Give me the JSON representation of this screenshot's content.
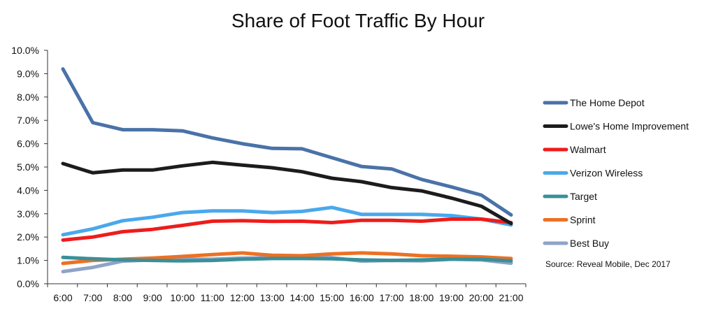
{
  "chart_data": {
    "type": "line",
    "title": "Share of Foot Traffic By Hour",
    "xlabel": "",
    "ylabel": "",
    "categories": [
      "6:00",
      "7:00",
      "8:00",
      "9:00",
      "10:00",
      "11:00",
      "12:00",
      "13:00",
      "14:00",
      "15:00",
      "16:00",
      "17:00",
      "18:00",
      "19:00",
      "20:00",
      "21:00"
    ],
    "y_ticks": [
      "0.0%",
      "1.0%",
      "2.0%",
      "3.0%",
      "4.0%",
      "5.0%",
      "6.0%",
      "7.0%",
      "8.0%",
      "9.0%",
      "10.0%"
    ],
    "ylim": [
      0,
      10
    ],
    "grid": false,
    "legend_position": "right",
    "series": [
      {
        "name": "The Home Depot",
        "color": "#4a72a8",
        "values": [
          9.2,
          6.9,
          6.6,
          6.6,
          6.55,
          6.25,
          6.0,
          5.8,
          5.78,
          5.4,
          5.02,
          4.92,
          4.47,
          4.15,
          3.8,
          2.95
        ]
      },
      {
        "name": "Lowe's Home Improvement",
        "color": "#1c1c1c",
        "values": [
          5.15,
          4.75,
          4.87,
          4.87,
          5.05,
          5.2,
          5.08,
          4.97,
          4.8,
          4.52,
          4.37,
          4.12,
          3.98,
          3.67,
          3.32,
          2.58
        ]
      },
      {
        "name": "Walmart",
        "color": "#ee1c1c",
        "values": [
          1.87,
          2.0,
          2.23,
          2.33,
          2.5,
          2.68,
          2.7,
          2.67,
          2.68,
          2.62,
          2.72,
          2.72,
          2.68,
          2.77,
          2.77,
          2.62
        ]
      },
      {
        "name": "Verizon Wireless",
        "color": "#4aa8ec",
        "values": [
          2.1,
          2.35,
          2.7,
          2.85,
          3.05,
          3.12,
          3.12,
          3.05,
          3.1,
          3.27,
          2.97,
          2.97,
          2.97,
          2.92,
          2.77,
          2.52
        ]
      },
      {
        "name": "Target",
        "color": "#3a8f98",
        "values": [
          1.13,
          1.07,
          1.02,
          1.0,
          0.98,
          1.0,
          1.05,
          1.08,
          1.08,
          1.07,
          1.02,
          1.0,
          1.02,
          1.05,
          1.05,
          0.98
        ]
      },
      {
        "name": "Sprint",
        "color": "#ec7124",
        "values": [
          0.87,
          1.0,
          1.05,
          1.1,
          1.17,
          1.25,
          1.32,
          1.22,
          1.2,
          1.28,
          1.32,
          1.28,
          1.2,
          1.18,
          1.15,
          1.08
        ]
      },
      {
        "name": "Best Buy",
        "color": "#8ea3c8",
        "values": [
          0.52,
          0.7,
          0.97,
          1.02,
          1.05,
          1.05,
          1.1,
          1.12,
          1.12,
          1.12,
          0.97,
          1.0,
          0.98,
          1.05,
          1.02,
          0.88
        ]
      }
    ],
    "annotation": "Source: Reveal Mobile, Dec 2017"
  }
}
